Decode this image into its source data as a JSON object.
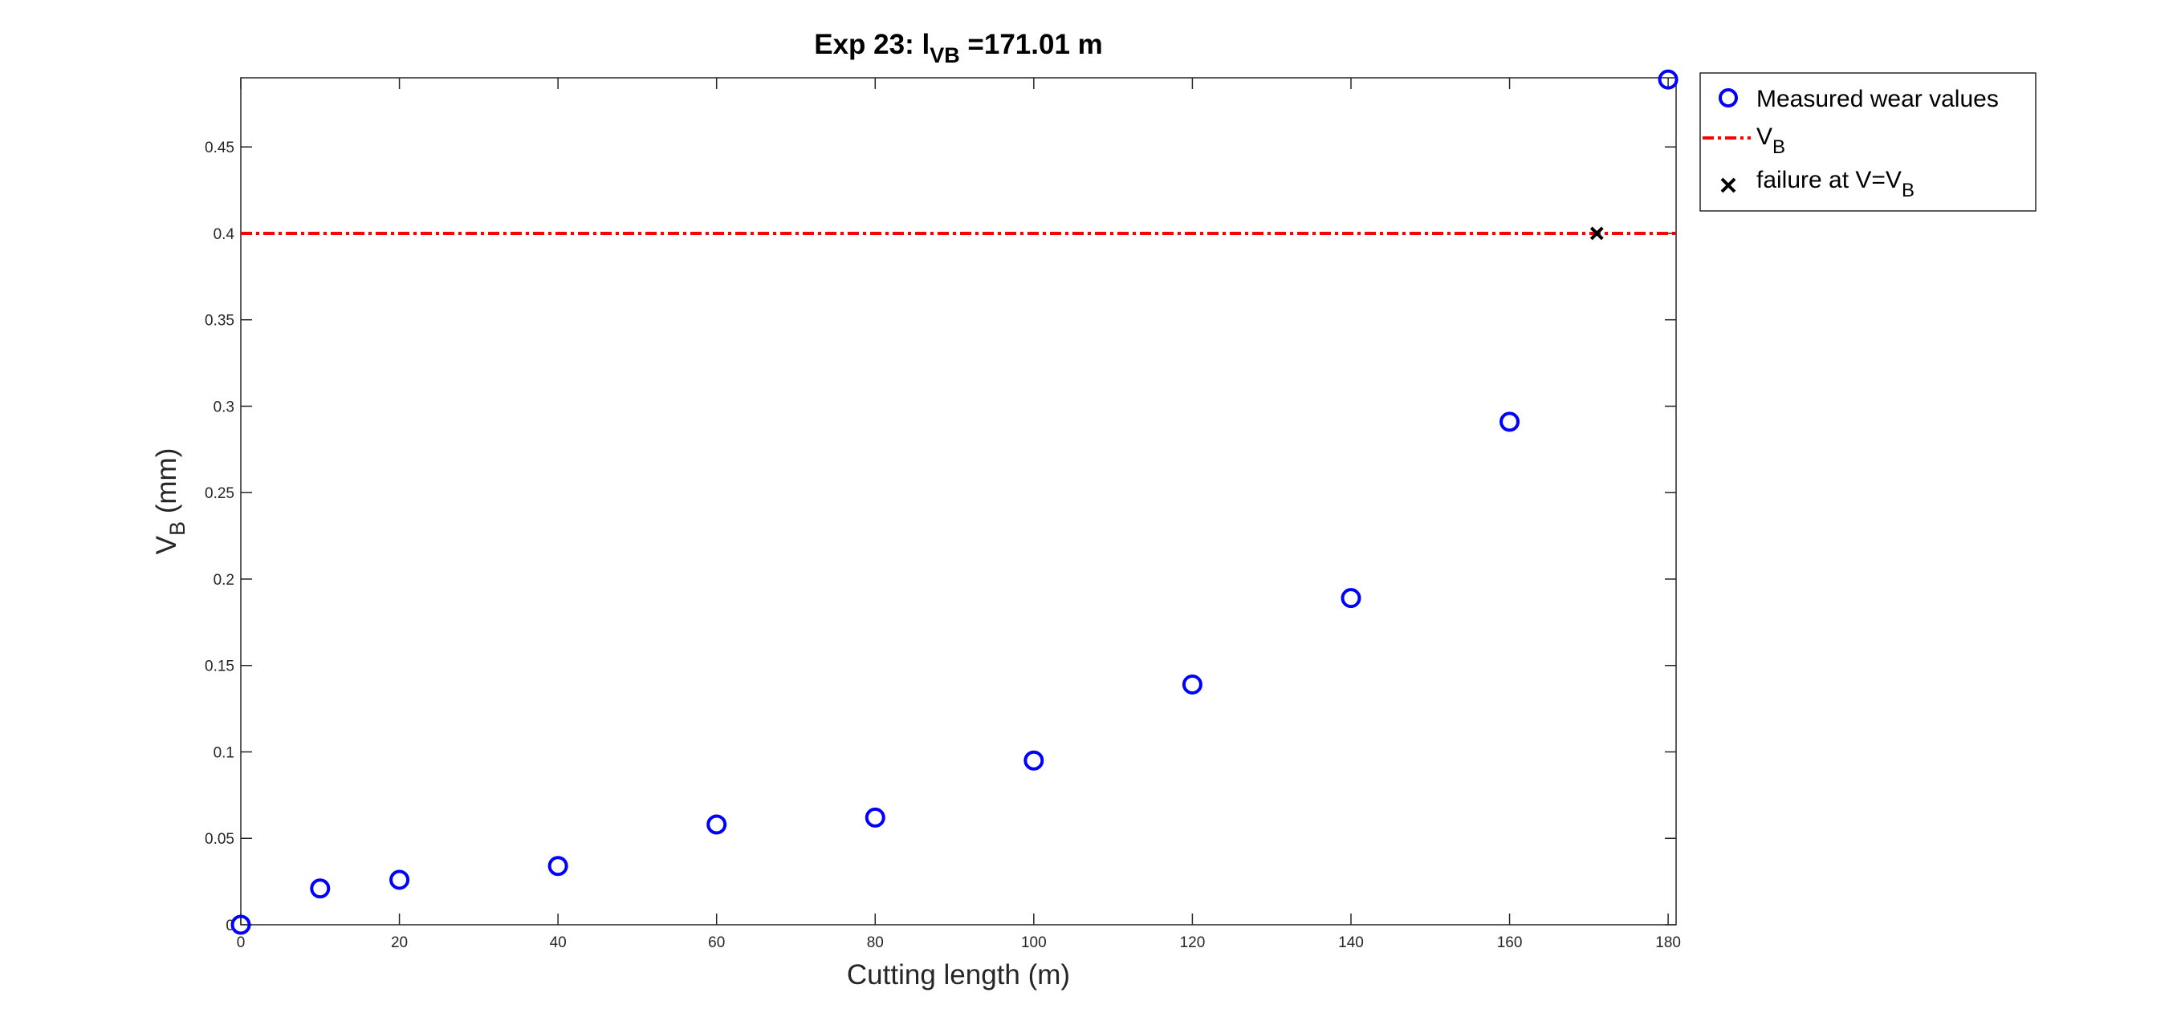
{
  "chart_data": {
    "type": "scatter",
    "title": {
      "prefix": "Exp 23: l",
      "subscript": "VB",
      "suffix": " =171.01 m"
    },
    "xlabel": "Cutting length (m)",
    "ylabel": {
      "main": "V",
      "subscript": "B",
      "suffix": " (mm)"
    },
    "xlim": [
      0,
      181
    ],
    "ylim": [
      0,
      0.49
    ],
    "xticks": [
      0,
      20,
      40,
      60,
      80,
      100,
      120,
      140,
      160,
      180
    ],
    "xtick_labels": [
      "0",
      "20",
      "40",
      "60",
      "80",
      "100",
      "120",
      "140",
      "160",
      "180"
    ],
    "yticks": [
      0,
      0.05,
      0.1,
      0.15,
      0.2,
      0.25,
      0.3,
      0.35,
      0.4,
      0.45
    ],
    "ytick_labels": [
      "0",
      "0.05",
      "0.1",
      "0.15",
      "0.2",
      "0.25",
      "0.3",
      "0.35",
      "0.4",
      "0.45"
    ],
    "grid": false,
    "legend_position": "outside-top-right",
    "series": [
      {
        "name": "Measured wear values",
        "kind": "scatter",
        "marker": "circle",
        "color": "#0000FF",
        "x": [
          0,
          10,
          20,
          40,
          60,
          80,
          100,
          120,
          140,
          160,
          180
        ],
        "y": [
          0,
          0.021,
          0.026,
          0.034,
          0.058,
          0.062,
          0.095,
          0.139,
          0.189,
          0.291,
          0.489
        ]
      },
      {
        "name": "V",
        "name_subscript": "B",
        "kind": "hline",
        "line_style": "dash-dot",
        "color": "#FF0000",
        "y": 0.4
      },
      {
        "name": "failure at V=V",
        "name_subscript": "B",
        "kind": "scatter",
        "marker": "x",
        "color": "#000000",
        "x": [
          171.01
        ],
        "y": [
          0.4
        ]
      }
    ]
  }
}
